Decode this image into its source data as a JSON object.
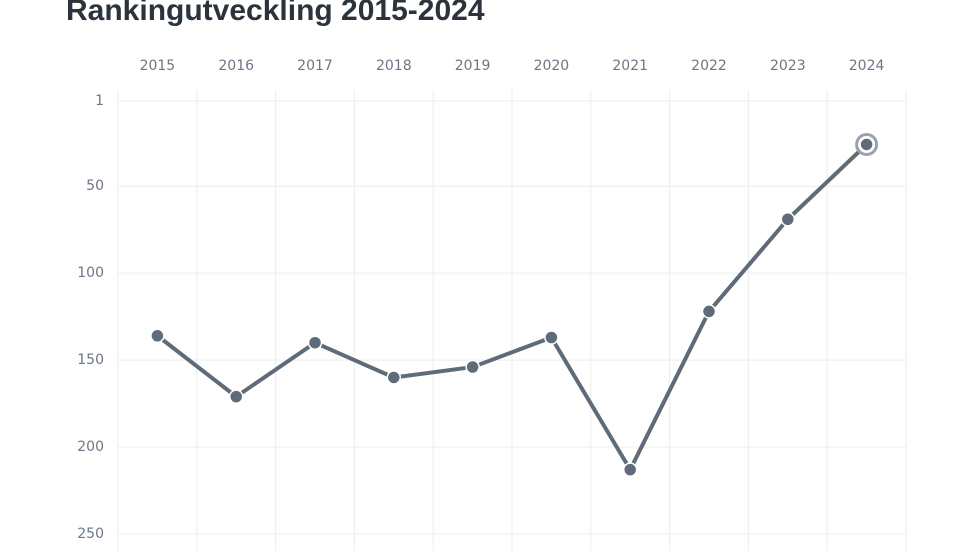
{
  "chart_data": {
    "type": "line",
    "title": "Rankingutveckling 2015-2024",
    "categories": [
      "2015",
      "2016",
      "2017",
      "2018",
      "2019",
      "2020",
      "2021",
      "2022",
      "2023",
      "2024"
    ],
    "values": [
      136,
      171,
      140,
      160,
      154,
      137,
      213,
      122,
      69,
      26
    ],
    "color": "#5f6b78",
    "ylim": [
      1,
      250
    ],
    "yticks": [
      1,
      50,
      100,
      150,
      200,
      250
    ],
    "inverted": true,
    "grid": true
  }
}
